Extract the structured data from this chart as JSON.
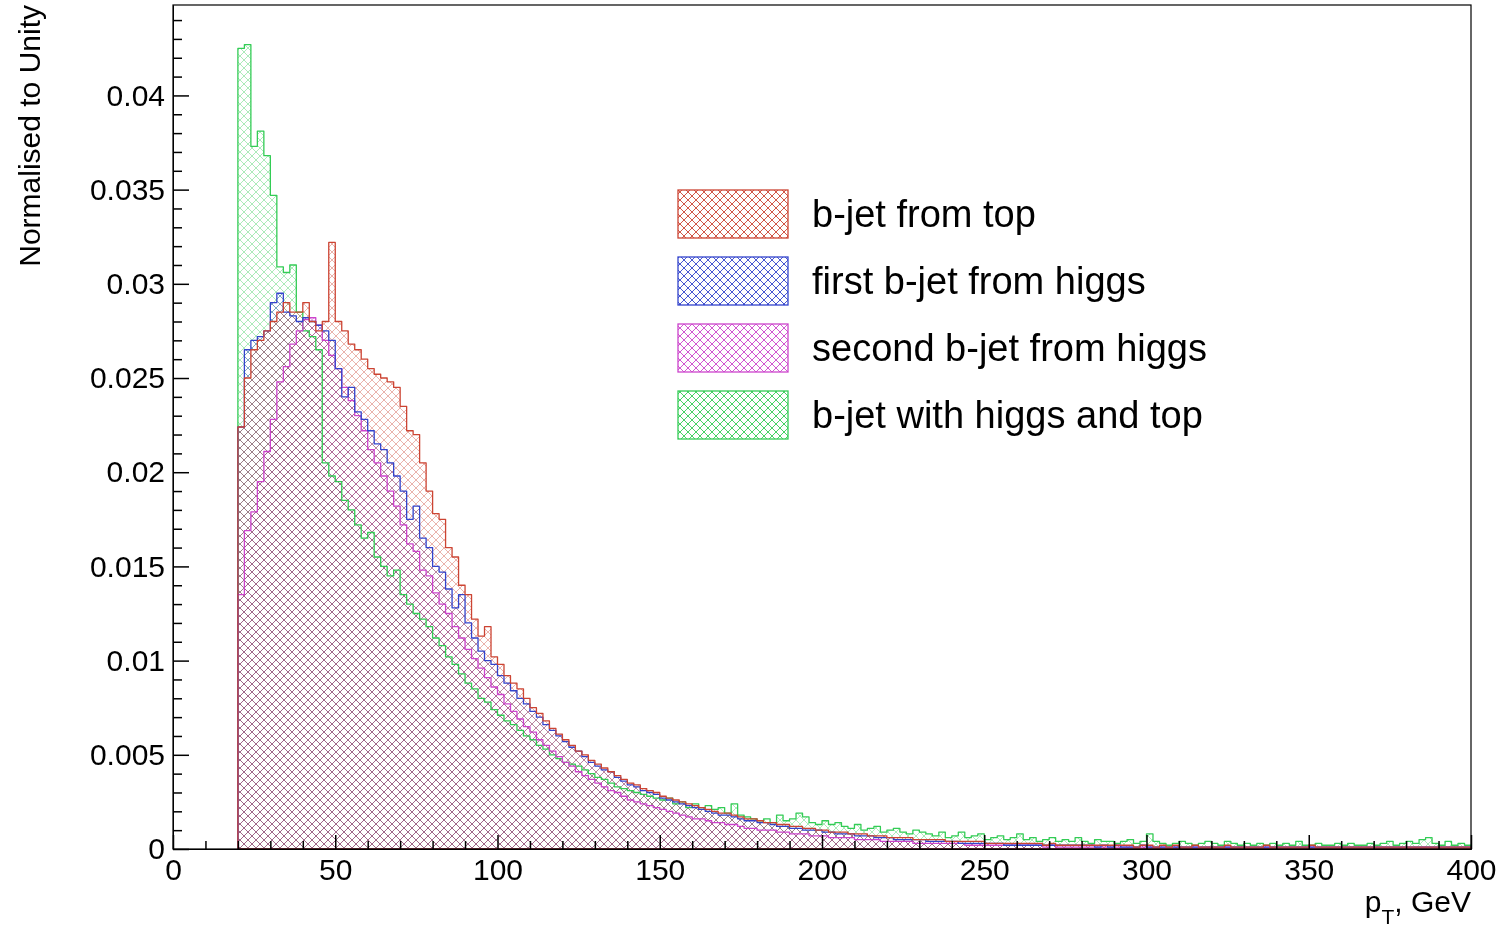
{
  "chart_data": {
    "type": "histogram",
    "xlabel": "p$_{T}$, GeV",
    "ylabel": "Normalised to Unity",
    "legend": "top right",
    "grid": false,
    "xlim": [
      0,
      400
    ],
    "ylim": [
      0,
      0.0448
    ],
    "xticks": [
      0,
      {
        "value": 10,
        "label": null
      },
      {
        "value": 20,
        "label": null
      },
      {
        "value": 30,
        "label": null
      },
      {
        "value": 40,
        "label": null
      },
      50,
      {
        "value": 60,
        "label": null
      },
      {
        "value": 70,
        "label": null
      },
      {
        "value": 80,
        "label": null
      },
      {
        "value": 90,
        "label": null
      },
      100,
      {
        "value": 110,
        "label": null
      },
      {
        "value": 120,
        "label": null
      },
      {
        "value": 130,
        "label": null
      },
      {
        "value": 140,
        "label": null
      },
      150,
      {
        "value": 160,
        "label": null
      },
      {
        "value": 170,
        "label": null
      },
      {
        "value": 180,
        "label": null
      },
      {
        "value": 190,
        "label": null
      },
      200,
      {
        "value": 210,
        "label": null
      },
      {
        "value": 220,
        "label": null
      },
      {
        "value": 230,
        "label": null
      },
      {
        "value": 240,
        "label": null
      },
      250,
      {
        "value": 260,
        "label": null
      },
      {
        "value": 270,
        "label": null
      },
      {
        "value": 280,
        "label": null
      },
      {
        "value": 290,
        "label": null
      },
      300,
      {
        "value": 310,
        "label": null
      },
      {
        "value": 320,
        "label": null
      },
      {
        "value": 330,
        "label": null
      },
      {
        "value": 340,
        "label": null
      },
      350,
      {
        "value": 360,
        "label": null
      },
      {
        "value": 370,
        "label": null
      },
      {
        "value": 380,
        "label": null
      },
      {
        "value": 390,
        "label": null
      },
      400
    ],
    "yticks": [
      0,
      {
        "value": 0.001,
        "label": null
      },
      {
        "value": 0.002,
        "label": null
      },
      {
        "value": 0.003,
        "label": null
      },
      {
        "value": 0.004,
        "label": null
      },
      0.005,
      {
        "value": 0.006,
        "label": null
      },
      {
        "value": 0.007,
        "label": null
      },
      {
        "value": 0.008,
        "label": null
      },
      {
        "value": 0.009,
        "label": null
      },
      0.01,
      {
        "value": 0.011,
        "label": null
      },
      {
        "value": 0.012,
        "label": null
      },
      {
        "value": 0.013,
        "label": null
      },
      {
        "value": 0.014,
        "label": null
      },
      0.015,
      {
        "value": 0.016,
        "label": null
      },
      {
        "value": 0.017,
        "label": null
      },
      {
        "value": 0.018,
        "label": null
      },
      {
        "value": 0.019,
        "label": null
      },
      0.02,
      {
        "value": 0.021,
        "label": null
      },
      {
        "value": 0.022,
        "label": null
      },
      {
        "value": 0.023,
        "label": null
      },
      {
        "value": 0.024,
        "label": null
      },
      0.025,
      {
        "value": 0.026,
        "label": null
      },
      {
        "value": 0.027,
        "label": null
      },
      {
        "value": 0.028,
        "label": null
      },
      {
        "value": 0.029,
        "label": null
      },
      0.03,
      {
        "value": 0.031,
        "label": null
      },
      {
        "value": 0.032,
        "label": null
      },
      {
        "value": 0.033,
        "label": null
      },
      {
        "value": 0.034,
        "label": null
      },
      0.035,
      {
        "value": 0.036,
        "label": null
      },
      {
        "value": 0.037,
        "label": null
      },
      {
        "value": 0.038,
        "label": null
      },
      {
        "value": 0.039,
        "label": null
      },
      0.04,
      {
        "value": 0.041,
        "label": null
      },
      {
        "value": 0.042,
        "label": null
      },
      {
        "value": 0.043,
        "label": null
      },
      {
        "value": 0.044,
        "label": null
      }
    ],
    "bins": [
      20,
      22,
      24,
      26,
      28,
      30,
      32,
      34,
      36,
      38,
      40,
      42,
      44,
      46,
      48,
      50,
      52,
      54,
      56,
      58,
      60,
      62,
      64,
      66,
      68,
      70,
      72,
      74,
      76,
      78,
      80,
      82,
      84,
      86,
      88,
      90,
      92,
      94,
      96,
      98,
      100,
      102,
      104,
      106,
      108,
      110,
      112,
      114,
      116,
      118,
      120,
      122,
      124,
      126,
      128,
      130,
      132,
      134,
      136,
      138,
      140,
      142,
      144,
      146,
      148,
      150,
      152,
      154,
      156,
      158,
      160,
      162,
      164,
      166,
      168,
      170,
      172,
      174,
      176,
      178,
      180,
      182,
      184,
      186,
      188,
      190,
      192,
      194,
      196,
      198,
      200,
      202,
      204,
      206,
      208,
      210,
      212,
      214,
      216,
      218,
      220,
      222,
      224,
      226,
      228,
      230,
      232,
      234,
      236,
      238,
      240,
      242,
      244,
      246,
      248,
      250,
      252,
      254,
      256,
      258,
      260,
      262,
      264,
      266,
      268,
      270,
      272,
      274,
      276,
      278,
      280,
      282,
      284,
      286,
      288,
      290,
      292,
      294,
      296,
      298,
      300,
      302,
      304,
      306,
      308,
      310,
      312,
      314,
      316,
      318,
      320,
      322,
      324,
      326,
      328,
      330,
      332,
      334,
      336,
      338,
      340,
      342,
      344,
      346,
      348,
      350,
      352,
      354,
      356,
      358,
      360,
      362,
      364,
      366,
      368,
      370,
      372,
      374,
      376,
      378,
      380,
      382,
      384,
      386,
      388,
      390,
      392,
      394,
      396,
      398,
      400
    ],
    "series": [
      {
        "name": "b-jet from top",
        "color": "#cc4433",
        "values": [
          0.0224,
          0.025,
          0.0265,
          0.027,
          0.0275,
          0.028,
          0.0285,
          0.029,
          0.0285,
          0.0285,
          0.029,
          0.028,
          0.0275,
          0.028,
          0.0322,
          0.028,
          0.0275,
          0.0268,
          0.0265,
          0.026,
          0.0255,
          0.0252,
          0.025,
          0.0248,
          0.0245,
          0.0235,
          0.0222,
          0.022,
          0.0205,
          0.019,
          0.0178,
          0.0175,
          0.016,
          0.0155,
          0.014,
          0.0135,
          0.0122,
          0.0113,
          0.0118,
          0.0102,
          0.0098,
          0.0092,
          0.0088,
          0.0085,
          0.008,
          0.0075,
          0.0072,
          0.0068,
          0.0064,
          0.0061,
          0.0058,
          0.0055,
          0.0052,
          0.005,
          0.0047,
          0.0045,
          0.0043,
          0.0041,
          0.0039,
          0.0037,
          0.0035,
          0.0034,
          0.0032,
          0.0031,
          0.003,
          0.0028,
          0.0027,
          0.0026,
          0.0025,
          0.0024,
          0.0023,
          0.0022,
          0.0021,
          0.002,
          0.0019,
          0.0019,
          0.0018,
          0.0017,
          0.0016,
          0.0016,
          0.0015,
          0.0014,
          0.0014,
          0.0013,
          0.0013,
          0.0012,
          0.0012,
          0.0011,
          0.0011,
          0.001,
          0.001,
          0.0009,
          0.0009,
          0.0009,
          0.0008,
          0.0008,
          0.0008,
          0.0007,
          0.0007,
          0.0007,
          0.0006,
          0.0006,
          0.0006,
          0.0006,
          0.0005,
          0.0005,
          0.0005,
          0.0005,
          0.0005,
          0.0004,
          0.0004,
          0.0004,
          0.0004,
          0.0004,
          0.0004,
          0.0003,
          0.0003,
          0.0003,
          0.0003,
          0.0003,
          0.0003,
          0.0003,
          0.0003,
          0.0003,
          0.0002,
          0.0003,
          0.0002,
          0.0002,
          0.0002,
          0.0002,
          0.0002,
          0.0002,
          0.0002,
          0.0002,
          0.0002,
          0.0002,
          0.0002,
          0.0002,
          0.0001,
          0.0002,
          0.0002,
          0.0001,
          0.0002,
          0.0001,
          0.0002,
          0.0001,
          0.0001,
          0.0002,
          0.0001,
          0.0001,
          0.0001,
          0.0001,
          0.0002,
          0.0001,
          0.0001,
          0.0001,
          0.0001,
          0.0001,
          0.0002,
          0.0001,
          0.0001,
          0.0001,
          0.0001,
          0.0001,
          0.0001,
          0.0002,
          0.0001,
          0.0001,
          0.0001,
          0.0001,
          0.0001,
          0.0001,
          0.0001,
          0.0001,
          0.0001,
          0.0001,
          0.0001,
          0.0001,
          0.0001,
          0.0001,
          0.0001,
          0.0001,
          0.0001,
          0.0001,
          0.0001,
          0.0001,
          0.0001,
          0.0001,
          0.0001,
          0.0001
        ]
      },
      {
        "name": "first b-jet from higgs",
        "color": "#3344cc",
        "values": [
          0.0224,
          0.0265,
          0.027,
          0.0272,
          0.0275,
          0.029,
          0.0295,
          0.0285,
          0.0283,
          0.028,
          0.0282,
          0.028,
          0.0278,
          0.0275,
          0.027,
          0.0255,
          0.024,
          0.0245,
          0.0232,
          0.0228,
          0.0222,
          0.0215,
          0.0212,
          0.0205,
          0.0198,
          0.019,
          0.0175,
          0.0182,
          0.0165,
          0.016,
          0.015,
          0.0147,
          0.0138,
          0.0128,
          0.0135,
          0.012,
          0.0112,
          0.0105,
          0.01,
          0.0098,
          0.0092,
          0.0088,
          0.0084,
          0.008,
          0.0077,
          0.0073,
          0.007,
          0.0066,
          0.0063,
          0.006,
          0.0057,
          0.0054,
          0.0052,
          0.0049,
          0.0046,
          0.0044,
          0.0042,
          0.0041,
          0.0038,
          0.0036,
          0.0034,
          0.0033,
          0.0031,
          0.003,
          0.0029,
          0.0027,
          0.0026,
          0.0025,
          0.0024,
          0.0023,
          0.0022,
          0.0021,
          0.002,
          0.0019,
          0.0018,
          0.0018,
          0.0017,
          0.0016,
          0.0015,
          0.0015,
          0.0014,
          0.0014,
          0.0013,
          0.0012,
          0.0012,
          0.0011,
          0.0011,
          0.001,
          0.001,
          0.001,
          0.0009,
          0.0009,
          0.0008,
          0.0008,
          0.0008,
          0.0007,
          0.0007,
          0.0007,
          0.0006,
          0.0006,
          0.0006,
          0.0005,
          0.0005,
          0.0005,
          0.0005,
          0.0005,
          0.0004,
          0.0004,
          0.0004,
          0.0004,
          0.0004,
          0.0003,
          0.0003,
          0.0003,
          0.0003,
          0.0003,
          0.0003,
          0.0003,
          0.0002,
          0.0002,
          0.0002,
          0.0002,
          0.0002,
          0.0002,
          0.0002,
          0.0002,
          0.0002,
          0.0002,
          0.0002,
          0.0002,
          0.0002,
          0.0002,
          0.0001,
          0.0002,
          0.0001,
          0.0002,
          0.0001,
          0.0001,
          0.0001,
          0.0002,
          0.0001,
          0.0001,
          0.0001,
          0.0001,
          0.0001,
          0.0001,
          0.0001,
          0.0001,
          0.0001,
          0.0001,
          0.0001,
          0.0001,
          0.0001,
          0.0001,
          0.0001,
          0.0001,
          0.0001,
          0.0001,
          0.0001,
          0.0001,
          0.0001,
          0.0001,
          0.0001,
          0.0001,
          0.0001,
          0.0001,
          0.0001,
          0.0001,
          0.0001,
          0.0001,
          0.0001,
          0.0001,
          0.0001,
          0.0001,
          0.0001,
          0.0001,
          0.0001,
          0.0001,
          0.0001,
          0.0001,
          0.0001,
          0.0001,
          0.0001,
          0.0001,
          0.0001,
          0.0001,
          0.0001,
          0.0001,
          0.0001,
          0.0001
        ]
      },
      {
        "name": "second b-jet from higgs",
        "color": "#cc44cc",
        "values": [
          0.0135,
          0.0169,
          0.0179,
          0.0195,
          0.0211,
          0.0228,
          0.0248,
          0.0256,
          0.0268,
          0.0275,
          0.0281,
          0.0282,
          0.0278,
          0.027,
          0.0262,
          0.0255,
          0.0245,
          0.0238,
          0.023,
          0.0222,
          0.0212,
          0.0205,
          0.0198,
          0.019,
          0.0182,
          0.0172,
          0.0162,
          0.0158,
          0.0148,
          0.0145,
          0.0136,
          0.013,
          0.0125,
          0.0118,
          0.0112,
          0.0106,
          0.0101,
          0.0096,
          0.0091,
          0.0086,
          0.0082,
          0.0077,
          0.0073,
          0.0069,
          0.0065,
          0.0062,
          0.0058,
          0.0055,
          0.0052,
          0.0049,
          0.0046,
          0.0044,
          0.0041,
          0.0039,
          0.0037,
          0.0035,
          0.0033,
          0.0031,
          0.003,
          0.0028,
          0.0026,
          0.0025,
          0.0024,
          0.0023,
          0.0022,
          0.0021,
          0.002,
          0.0019,
          0.0018,
          0.0017,
          0.0016,
          0.0016,
          0.0015,
          0.0014,
          0.0014,
          0.0013,
          0.0013,
          0.0012,
          0.0011,
          0.0011,
          0.001,
          0.001,
          0.001,
          0.0009,
          0.0009,
          0.0008,
          0.0008,
          0.0008,
          0.0007,
          0.0007,
          0.0007,
          0.0006,
          0.0006,
          0.0006,
          0.0006,
          0.0005,
          0.0005,
          0.0005,
          0.0005,
          0.0004,
          0.0004,
          0.0004,
          0.0004,
          0.0004,
          0.0003,
          0.0003,
          0.0003,
          0.0003,
          0.0003,
          0.0003,
          0.0003,
          0.0003,
          0.0002,
          0.0002,
          0.0002,
          0.0002,
          0.0002,
          0.0002,
          0.0002,
          0.0002,
          0.0002,
          0.0002,
          0.0002,
          0.0002,
          0.0001,
          0.0002,
          0.0001,
          0.0001,
          0.0001,
          0.0001,
          0.0001,
          0.0001,
          0.0001,
          0.0001,
          0.0001,
          0.0001,
          0.0001,
          0.0001,
          0.0001,
          0.0001,
          0.0001,
          0.0001,
          0.0001,
          0.0001,
          0.0001,
          0.0001,
          0.0001,
          0.0001,
          0.0001,
          0.0001,
          0.0001,
          0.0001,
          0.0001,
          0.0001,
          0.0001,
          0.0001,
          0.0001,
          0.0001,
          0.0001,
          0.0001,
          0.0001,
          0.0001,
          0.0001,
          0.0001,
          0.0001,
          0.0001,
          0.0001,
          0.0001,
          0.0001,
          0.0001,
          0.0001,
          0.0001,
          0.0001,
          0.0001,
          0.0001,
          0.0001,
          0.0001,
          0.0001,
          0.0001,
          0.0001,
          0.0001,
          0.0001,
          0.0001,
          0.0001,
          0.0001,
          0.0001,
          0.0001,
          0.0001,
          0.0001,
          0.0001
        ]
      },
      {
        "name": "b-jet with higgs and top",
        "color": "#33cc55",
        "values": [
          0.0425,
          0.0427,
          0.0373,
          0.0381,
          0.0368,
          0.0347,
          0.0309,
          0.0306,
          0.031,
          0.0285,
          0.0275,
          0.0272,
          0.0265,
          0.0205,
          0.0198,
          0.0195,
          0.0185,
          0.018,
          0.0172,
          0.0165,
          0.0168,
          0.0155,
          0.015,
          0.0145,
          0.0148,
          0.0135,
          0.013,
          0.0125,
          0.0122,
          0.0118,
          0.0112,
          0.0108,
          0.0102,
          0.0098,
          0.0093,
          0.0088,
          0.0085,
          0.008,
          0.0078,
          0.0074,
          0.0071,
          0.0068,
          0.0066,
          0.0063,
          0.006,
          0.0058,
          0.0055,
          0.0053,
          0.005,
          0.0048,
          0.0046,
          0.0045,
          0.0044,
          0.0042,
          0.004,
          0.0038,
          0.0037,
          0.0035,
          0.0033,
          0.0032,
          0.0031,
          0.003,
          0.0029,
          0.0028,
          0.0027,
          0.0026,
          0.0027,
          0.0024,
          0.0025,
          0.0022,
          0.0024,
          0.0022,
          0.0023,
          0.0021,
          0.0022,
          0.0019,
          0.0024,
          0.0018,
          0.0017,
          0.0016,
          0.0015,
          0.0016,
          0.0014,
          0.0018,
          0.0015,
          0.0016,
          0.0019,
          0.0017,
          0.0014,
          0.0013,
          0.0015,
          0.0013,
          0.0014,
          0.0012,
          0.0011,
          0.0013,
          0.001,
          0.0011,
          0.0012,
          0.0009,
          0.001,
          0.0011,
          0.0009,
          0.0008,
          0.001,
          0.0009,
          0.0008,
          0.0007,
          0.0009,
          0.0006,
          0.0007,
          0.0009,
          0.0006,
          0.0007,
          0.0008,
          0.0005,
          0.0006,
          0.0007,
          0.0005,
          0.0006,
          0.0008,
          0.0005,
          0.0006,
          0.0004,
          0.0005,
          0.0006,
          0.0004,
          0.0005,
          0.0004,
          0.0006,
          0.0004,
          0.0003,
          0.0005,
          0.0004,
          0.0004,
          0.0003,
          0.0004,
          0.0005,
          0.0003,
          0.0004,
          0.0008,
          0.0004,
          0.0003,
          0.0002,
          0.0003,
          0.0004,
          0.0003,
          0.0002,
          0.0003,
          0.0004,
          0.0003,
          0.0002,
          0.0004,
          0.0003,
          0.0002,
          0.0003,
          0.0002,
          0.0003,
          0.0002,
          0.0003,
          0.0002,
          0.0003,
          0.0002,
          0.0004,
          0.0002,
          0.0002,
          0.0003,
          0.0002,
          0.0002,
          0.0003,
          0.0002,
          0.0003,
          0.0002,
          0.0002,
          0.0003,
          0.0002,
          0.0003,
          0.0004,
          0.0002,
          0.0003,
          0.0004,
          0.0003,
          0.0005,
          0.0006,
          0.0003,
          0.0002,
          0.0004,
          0.0002,
          0.0003,
          0.0002
        ]
      }
    ]
  }
}
